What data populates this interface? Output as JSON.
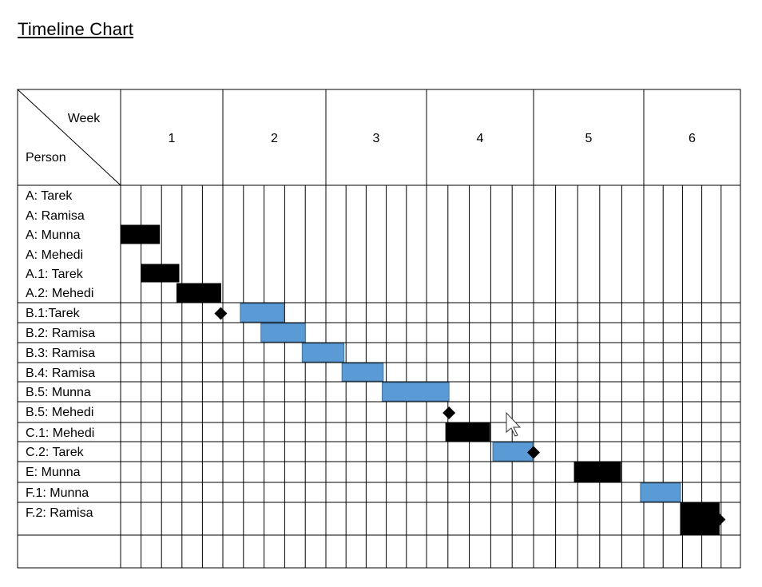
{
  "title": "Timeline Chart",
  "header": {
    "week_label": "Week",
    "person_label": "Person"
  },
  "weeks": [
    "1",
    "2",
    "3",
    "4",
    "5",
    "6"
  ],
  "rows": [
    "A: Tarek",
    "A: Ramisa",
    "A: Munna",
    "A: Mehedi",
    "A.1: Tarek",
    "A.2: Mehedi",
    "B.1:Tarek",
    "B.2: Ramisa",
    "B.3: Ramisa",
    "B.4: Ramisa",
    "B.5: Munna",
    "B.5: Mehedi",
    "C.1: Mehedi",
    "C.2: Tarek",
    "E: Munna",
    "F.1: Munna",
    "F.2: Ramisa"
  ],
  "colors": {
    "black_bar": "#000000",
    "blue_bar": "#5b9bd5",
    "blue_border": "#41719c",
    "grid": "#000000"
  },
  "chart_data": {
    "type": "gantt",
    "x_unit": "week",
    "xlim": [
      0,
      6
    ],
    "tasks": [
      {
        "row": 2,
        "start": 0.0,
        "end": 0.38,
        "color": "black"
      },
      {
        "row": 4,
        "start": 0.2,
        "end": 0.57,
        "color": "black"
      },
      {
        "row": 5,
        "start": 0.55,
        "end": 0.98,
        "color": "black"
      },
      {
        "row": 6,
        "start": 1.17,
        "end": 1.59,
        "color": "blue"
      },
      {
        "row": 7,
        "start": 1.37,
        "end": 1.8,
        "color": "blue"
      },
      {
        "row": 8,
        "start": 1.77,
        "end": 2.18,
        "color": "blue"
      },
      {
        "row": 9,
        "start": 2.16,
        "end": 2.57,
        "color": "blue"
      },
      {
        "row": 10,
        "start": 2.56,
        "end": 3.21,
        "color": "blue"
      },
      {
        "row": 12,
        "start": 3.18,
        "end": 3.59,
        "color": "black"
      },
      {
        "row": 13,
        "start": 3.62,
        "end": 3.99,
        "color": "blue"
      },
      {
        "row": 14,
        "start": 4.37,
        "end": 4.79,
        "color": "black"
      },
      {
        "row": 15,
        "start": 4.97,
        "end": 5.38,
        "color": "blue"
      },
      {
        "row": 16,
        "start": 5.38,
        "end": 5.78,
        "color": "black"
      }
    ],
    "milestones": [
      {
        "row": 6,
        "at": 0.98
      },
      {
        "row": 11,
        "at": 3.21
      },
      {
        "row": 13,
        "at": 4.0
      },
      {
        "row": 16,
        "at": 5.78
      }
    ]
  }
}
